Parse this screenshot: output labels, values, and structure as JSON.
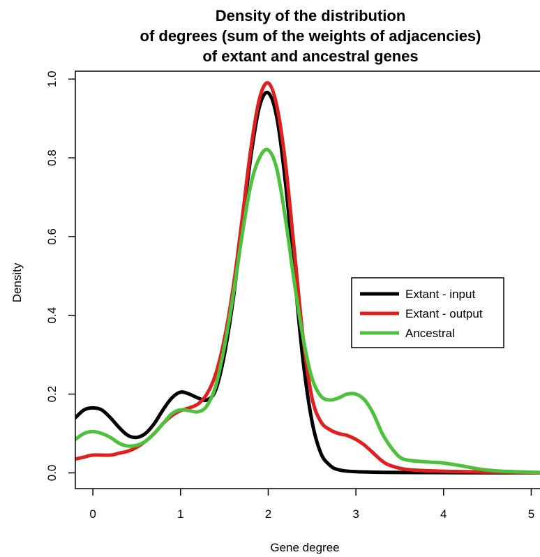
{
  "chart_data": {
    "type": "line",
    "title": [
      "Density of the distribution",
      "of degrees (sum of the weights of adjacencies)",
      "of extant and ancestral genes"
    ],
    "xlabel": "Gene degree",
    "ylabel": "Density",
    "xlim": [
      -0.2,
      5.1
    ],
    "ylim": [
      -0.04,
      1.02
    ],
    "x_ticks": [
      0,
      1,
      2,
      3,
      4,
      5
    ],
    "x_tick_labels": [
      "0",
      "1",
      "2",
      "3",
      "4",
      "5"
    ],
    "y_ticks": [
      0.0,
      0.2,
      0.4,
      0.6,
      0.8,
      1.0
    ],
    "y_tick_labels": [
      "0.0",
      "0.2",
      "0.4",
      "0.6",
      "0.8",
      "1.0"
    ],
    "legend_position": "right",
    "series": [
      {
        "name": "Extant - input",
        "color": "#000000",
        "points": [
          [
            -0.2,
            0.14
          ],
          [
            -0.1,
            0.16
          ],
          [
            0,
            0.165
          ],
          [
            0.1,
            0.16
          ],
          [
            0.2,
            0.14
          ],
          [
            0.3,
            0.115
          ],
          [
            0.4,
            0.095
          ],
          [
            0.5,
            0.09
          ],
          [
            0.6,
            0.1
          ],
          [
            0.7,
            0.125
          ],
          [
            0.8,
            0.16
          ],
          [
            0.9,
            0.19
          ],
          [
            1.0,
            0.205
          ],
          [
            1.1,
            0.2
          ],
          [
            1.2,
            0.19
          ],
          [
            1.3,
            0.185
          ],
          [
            1.4,
            0.21
          ],
          [
            1.5,
            0.3
          ],
          [
            1.6,
            0.44
          ],
          [
            1.7,
            0.62
          ],
          [
            1.8,
            0.8
          ],
          [
            1.9,
            0.93
          ],
          [
            2.0,
            0.965
          ],
          [
            2.1,
            0.9
          ],
          [
            2.2,
            0.73
          ],
          [
            2.3,
            0.5
          ],
          [
            2.4,
            0.28
          ],
          [
            2.5,
            0.13
          ],
          [
            2.6,
            0.05
          ],
          [
            2.7,
            0.02
          ],
          [
            2.8,
            0.008
          ],
          [
            3.0,
            0.003
          ],
          [
            3.5,
            0.001
          ],
          [
            5.1,
            0.0
          ]
        ]
      },
      {
        "name": "Extant - output",
        "color": "#e02020",
        "points": [
          [
            -0.2,
            0.035
          ],
          [
            -0.1,
            0.04
          ],
          [
            0,
            0.045
          ],
          [
            0.2,
            0.045
          ],
          [
            0.3,
            0.05
          ],
          [
            0.4,
            0.055
          ],
          [
            0.5,
            0.065
          ],
          [
            0.6,
            0.08
          ],
          [
            0.7,
            0.1
          ],
          [
            0.8,
            0.125
          ],
          [
            0.9,
            0.145
          ],
          [
            1.0,
            0.158
          ],
          [
            1.1,
            0.165
          ],
          [
            1.2,
            0.175
          ],
          [
            1.3,
            0.2
          ],
          [
            1.4,
            0.25
          ],
          [
            1.5,
            0.34
          ],
          [
            1.6,
            0.47
          ],
          [
            1.7,
            0.64
          ],
          [
            1.8,
            0.82
          ],
          [
            1.9,
            0.95
          ],
          [
            2.0,
            0.99
          ],
          [
            2.1,
            0.93
          ],
          [
            2.2,
            0.78
          ],
          [
            2.3,
            0.56
          ],
          [
            2.4,
            0.34
          ],
          [
            2.5,
            0.19
          ],
          [
            2.6,
            0.13
          ],
          [
            2.7,
            0.11
          ],
          [
            2.8,
            0.1
          ],
          [
            2.9,
            0.095
          ],
          [
            3.0,
            0.085
          ],
          [
            3.1,
            0.07
          ],
          [
            3.2,
            0.05
          ],
          [
            3.3,
            0.03
          ],
          [
            3.4,
            0.018
          ],
          [
            3.6,
            0.008
          ],
          [
            4.0,
            0.004
          ],
          [
            4.5,
            0.002
          ],
          [
            5.1,
            0.0
          ]
        ]
      },
      {
        "name": "Ancestral",
        "color": "#4cc23c",
        "points": [
          [
            -0.2,
            0.085
          ],
          [
            -0.1,
            0.1
          ],
          [
            0,
            0.105
          ],
          [
            0.1,
            0.1
          ],
          [
            0.2,
            0.09
          ],
          [
            0.3,
            0.075
          ],
          [
            0.4,
            0.068
          ],
          [
            0.5,
            0.07
          ],
          [
            0.6,
            0.08
          ],
          [
            0.7,
            0.1
          ],
          [
            0.8,
            0.125
          ],
          [
            0.9,
            0.15
          ],
          [
            1.0,
            0.16
          ],
          [
            1.1,
            0.158
          ],
          [
            1.2,
            0.155
          ],
          [
            1.3,
            0.17
          ],
          [
            1.4,
            0.22
          ],
          [
            1.5,
            0.32
          ],
          [
            1.6,
            0.45
          ],
          [
            1.7,
            0.6
          ],
          [
            1.8,
            0.73
          ],
          [
            1.9,
            0.8
          ],
          [
            2.0,
            0.82
          ],
          [
            2.1,
            0.77
          ],
          [
            2.2,
            0.64
          ],
          [
            2.3,
            0.48
          ],
          [
            2.4,
            0.34
          ],
          [
            2.5,
            0.24
          ],
          [
            2.6,
            0.195
          ],
          [
            2.7,
            0.185
          ],
          [
            2.8,
            0.19
          ],
          [
            2.9,
            0.2
          ],
          [
            3.0,
            0.2
          ],
          [
            3.1,
            0.185
          ],
          [
            3.2,
            0.15
          ],
          [
            3.3,
            0.1
          ],
          [
            3.4,
            0.065
          ],
          [
            3.5,
            0.04
          ],
          [
            3.6,
            0.032
          ],
          [
            3.8,
            0.028
          ],
          [
            4.0,
            0.025
          ],
          [
            4.2,
            0.018
          ],
          [
            4.4,
            0.01
          ],
          [
            4.6,
            0.005
          ],
          [
            4.8,
            0.003
          ],
          [
            5.1,
            0.001
          ]
        ]
      }
    ]
  }
}
